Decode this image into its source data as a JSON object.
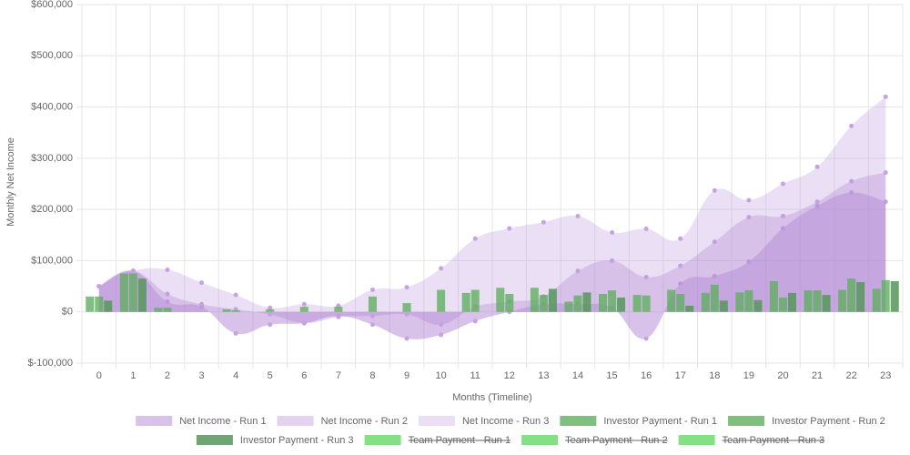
{
  "chart_data": {
    "type": "combo",
    "x_label": "Months (Timeline)",
    "y_label": "Monthly Net Income",
    "categories": [
      "0",
      "1",
      "2",
      "3",
      "4",
      "5",
      "6",
      "7",
      "8",
      "9",
      "10",
      "11",
      "12",
      "13",
      "14",
      "15",
      "16",
      "17",
      "18",
      "19",
      "20",
      "21",
      "22",
      "23"
    ],
    "ylim": [
      -100000,
      600000
    ],
    "yticks": [
      {
        "value": -100000,
        "label": "$-100,000"
      },
      {
        "value": 0,
        "label": "$0"
      },
      {
        "value": 100000,
        "label": "$100,000"
      },
      {
        "value": 200000,
        "label": "$200,000"
      },
      {
        "value": 300000,
        "label": "$300,000"
      },
      {
        "value": 400000,
        "label": "$400,000"
      },
      {
        "value": 500000,
        "label": "$500,000"
      },
      {
        "value": 600000,
        "label": "$600,000"
      }
    ],
    "grid": true,
    "legend": "bottom",
    "series": [
      {
        "name": "Net Income - Run 1",
        "kind": "area",
        "color": "rgba(165,110,205,0.42)",
        "point_color": "#c6a2e2",
        "values": [
          50000,
          80000,
          20000,
          10000,
          -42000,
          -25000,
          -22000,
          -8000,
          -25000,
          -52000,
          -45000,
          -18000,
          0,
          15000,
          15000,
          8000,
          -52000,
          55000,
          70000,
          98000,
          163000,
          207000,
          233000,
          215000
        ]
      },
      {
        "name": "Net Income - Run 2",
        "kind": "area",
        "color": "rgba(175,130,210,0.35)",
        "point_color": "#c6a2e2",
        "values": [
          50000,
          80000,
          35000,
          15000,
          5000,
          -5000,
          -22000,
          -10000,
          -8000,
          -5000,
          -25000,
          10000,
          20000,
          30000,
          80000,
          100000,
          68000,
          90000,
          137000,
          185000,
          187000,
          215000,
          255000,
          272000
        ]
      },
      {
        "name": "Net Income - Run 3",
        "kind": "area",
        "color": "rgba(190,155,220,0.32)",
        "point_color": "#c6a2e2",
        "values": [
          50000,
          80000,
          82000,
          57000,
          33000,
          8000,
          15000,
          12000,
          43000,
          48000,
          85000,
          143000,
          163000,
          175000,
          187000,
          155000,
          162000,
          143000,
          237000,
          218000,
          250000,
          283000,
          363000,
          420000
        ]
      },
      {
        "name": "Investor Payment - Run 1",
        "kind": "bar",
        "color": "rgba(95,175,95,0.8)",
        "values": [
          30000,
          75000,
          8000,
          0,
          5000,
          0,
          0,
          0,
          0,
          0,
          0,
          37000,
          47000,
          47000,
          20000,
          35000,
          33000,
          43000,
          37000,
          38000,
          60000,
          42000,
          43000,
          45000
        ]
      },
      {
        "name": "Investor Payment - Run 2",
        "kind": "bar",
        "color": "rgba(95,175,95,0.8)",
        "values": [
          30000,
          75000,
          8000,
          0,
          3000,
          5000,
          10000,
          10000,
          30000,
          17000,
          43000,
          43000,
          35000,
          33000,
          32000,
          42000,
          32000,
          35000,
          53000,
          42000,
          28000,
          42000,
          65000,
          62000
        ]
      },
      {
        "name": "Investor Payment - Run 3",
        "kind": "bar",
        "color": "rgba(85,150,90,0.85)",
        "values": [
          22000,
          65000,
          0,
          0,
          0,
          0,
          0,
          0,
          0,
          0,
          0,
          0,
          0,
          45000,
          38000,
          28000,
          0,
          12000,
          22000,
          23000,
          37000,
          33000,
          58000,
          60000
        ]
      },
      {
        "name": "Team Payment - Run 1",
        "kind": "bar",
        "color": "rgba(120,220,120,0.9)",
        "hidden": true
      },
      {
        "name": "Team Payment - Run 2",
        "kind": "bar",
        "color": "rgba(120,220,120,0.9)",
        "hidden": true
      },
      {
        "name": "Team Payment - Run 3",
        "kind": "bar",
        "color": "rgba(120,220,120,0.9)",
        "hidden": true
      }
    ]
  }
}
